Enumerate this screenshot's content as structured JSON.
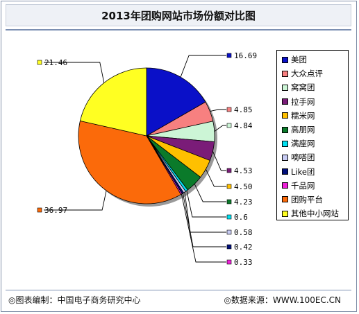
{
  "title": "2013年团购网站市场份额对比图",
  "footer": {
    "source_editor": "◎图表编制：中国电子商务研究中心",
    "data_source": "◎数据来源：WWW.100EC.CN"
  },
  "chart_data": {
    "type": "pie",
    "title": "2013年团购网站市场份额对比图",
    "series": [
      {
        "name": "美团",
        "value": 16.69,
        "label": "16.69",
        "color": "#0a10c8"
      },
      {
        "name": "大众点评",
        "value": 4.85,
        "label": "4.85",
        "color": "#f78080"
      },
      {
        "name": "窝窝团",
        "value": 4.84,
        "label": "4.84",
        "color": "#ccf5d6"
      },
      {
        "name": "拉手网",
        "value": 4.53,
        "label": "4.53",
        "color": "#7a1c78"
      },
      {
        "name": "糯米网",
        "value": 4.5,
        "label": "4.50",
        "color": "#ffc000"
      },
      {
        "name": "高朋网",
        "value": 4.23,
        "label": "4.23",
        "color": "#0a7a2a"
      },
      {
        "name": "满座网",
        "value": 0.6,
        "label": "0.6",
        "color": "#00e0f0"
      },
      {
        "name": "嘀嗒团",
        "value": 0.58,
        "label": "0.58",
        "color": "#c8ccf4"
      },
      {
        "name": "Like团",
        "value": 0.42,
        "label": "0.42",
        "color": "#000e7a"
      },
      {
        "name": "千品网",
        "value": 0.33,
        "label": "0.33",
        "color": "#ee20d8"
      },
      {
        "name": "团购平台",
        "value": 36.97,
        "label": "36.97",
        "color": "#fb6a0a"
      },
      {
        "name": "其他中小网站",
        "value": 21.46,
        "label": "21.46",
        "color": "#ffff22"
      }
    ],
    "legend_position": "right"
  }
}
